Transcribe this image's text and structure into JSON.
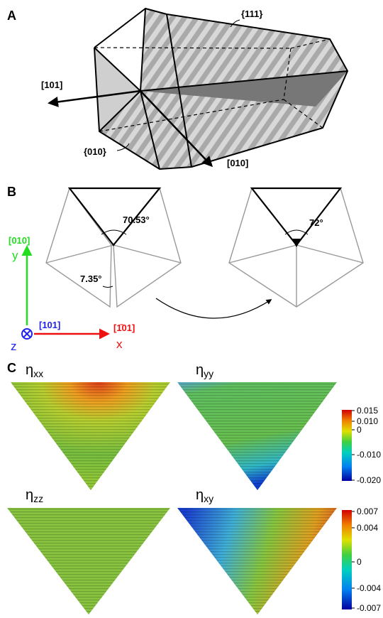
{
  "panel_a": {
    "label": "A",
    "plane_111": "{111}",
    "direction_101": "[101]",
    "plane_010": "{010}",
    "direction_010": "[010]"
  },
  "panel_b": {
    "label": "B",
    "angle_left": "70.53°",
    "angle_gap": "7.35°",
    "angle_right": "72°",
    "axes": {
      "y_direction": "[010]",
      "y": "y",
      "z_direction": "[101]",
      "z": "z",
      "x_direction": "[1̄01]",
      "x": "x"
    }
  },
  "panel_c": {
    "label": "C",
    "maps": [
      {
        "symbol": "η",
        "subscript": "xx"
      },
      {
        "symbol": "η",
        "subscript": "yy"
      },
      {
        "symbol": "η",
        "subscript": "zz"
      },
      {
        "symbol": "η",
        "subscript": "xy"
      }
    ],
    "colorbars": [
      {
        "ticks": [
          "0.015",
          "0.010",
          "0",
          "-0.010",
          "-0.020"
        ]
      },
      {
        "ticks": [
          "0.007",
          "0.004",
          "0",
          "-0.004",
          "-0.007"
        ]
      }
    ]
  }
}
